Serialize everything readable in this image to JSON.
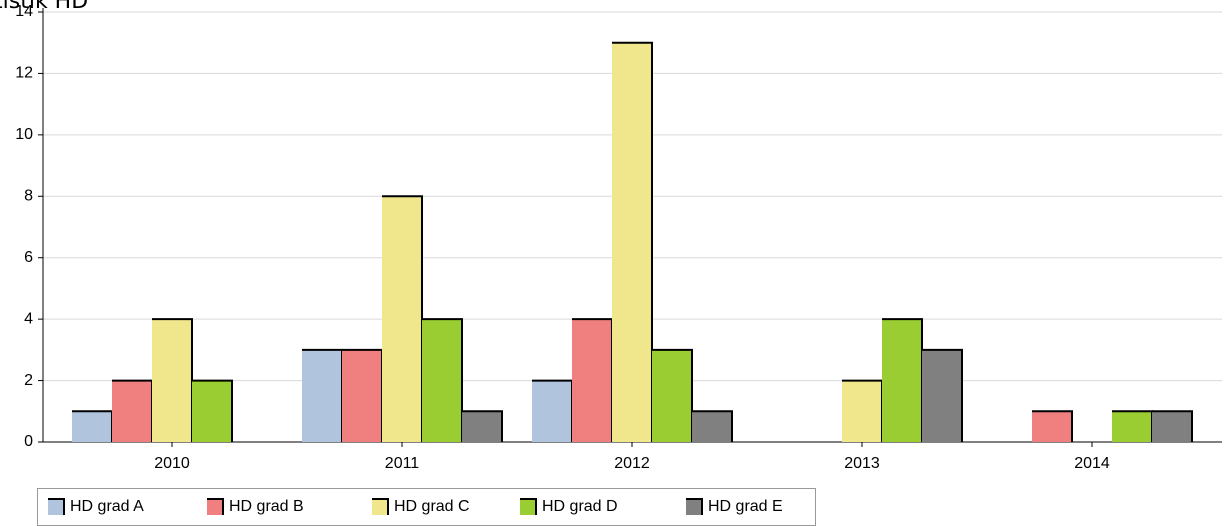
{
  "chart_data": {
    "type": "bar",
    "title": "tistik HD",
    "categories": [
      "2010",
      "2011",
      "2012",
      "2013",
      "2014"
    ],
    "series": [
      {
        "name": "HD grad A",
        "color": "#b0c4de",
        "values": [
          1,
          3,
          2,
          0,
          0
        ]
      },
      {
        "name": "HD grad B",
        "color": "#f08080",
        "values": [
          2,
          3,
          4,
          0,
          1
        ]
      },
      {
        "name": "HD grad C",
        "color": "#f0e68c",
        "values": [
          4,
          8,
          13,
          2,
          0
        ]
      },
      {
        "name": "HD grad D",
        "color": "#9acd32",
        "values": [
          2,
          4,
          3,
          4,
          1
        ]
      },
      {
        "name": "HD grad E",
        "color": "#808080",
        "values": [
          0,
          1,
          1,
          3,
          1
        ]
      }
    ],
    "ylim": [
      0,
      14
    ],
    "yticks": [
      0,
      2,
      4,
      6,
      8,
      10,
      12,
      14
    ],
    "grid": true,
    "legend": "bottom"
  }
}
